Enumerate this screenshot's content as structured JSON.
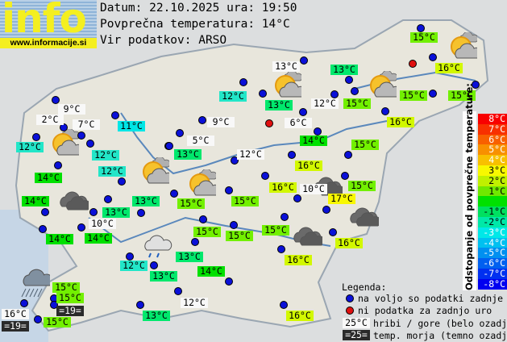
{
  "logo": {
    "word": "info",
    "url": "www.informacije.si"
  },
  "header": {
    "date_line": "Datum: 22.10.2025 ura: 19:50",
    "avg_line": "Povprečna temperatura: 14°C",
    "source_line": "Vir podatkov: ARSO"
  },
  "colors": {
    "white": "#f8f8f8",
    "11": "#00e6e6",
    "12": "#22e6c8",
    "13": "#00e86c",
    "14": "#00e000",
    "15": "#72f000",
    "16": "#d2f800",
    "17": "#f8f800",
    "sea": "#2a2a2a",
    "station_dot": "#0a10d8",
    "missing_dot": "#e01010"
  },
  "stations": [
    {
      "t": "9°C",
      "k": "white"
    },
    {
      "t": "2°C",
      "k": "white"
    },
    {
      "t": "7°C",
      "k": "white"
    },
    {
      "t": "11°C",
      "k": "11"
    },
    {
      "t": "12°C",
      "k": "12"
    },
    {
      "t": "12°C",
      "k": "12"
    },
    {
      "t": "12°C",
      "k": "12"
    },
    {
      "t": "14°C",
      "k": "14"
    },
    {
      "t": "14°C",
      "k": "14"
    },
    {
      "t": "14°C",
      "k": "14"
    },
    {
      "t": "13°C",
      "k": "13"
    },
    {
      "t": "10°C",
      "k": "white"
    },
    {
      "t": "14°C",
      "k": "14"
    },
    {
      "t": "13°C",
      "k": "13"
    },
    {
      "t": "12°C",
      "k": "12"
    },
    {
      "t": "13°C",
      "k": "13"
    },
    {
      "t": "13°C",
      "k": "13"
    },
    {
      "t": "14°C",
      "k": "14"
    },
    {
      "t": "12°C",
      "k": "white"
    },
    {
      "t": "13°C",
      "k": "13"
    },
    {
      "t": "15°C",
      "k": "15"
    },
    {
      "t": "15°C",
      "k": "15"
    },
    {
      "t": "=19=",
      "k": "sea"
    },
    {
      "t": "16°C",
      "k": "white"
    },
    {
      "t": "=19=",
      "k": "sea"
    },
    {
      "t": "15°C",
      "k": "15"
    },
    {
      "t": "12°C",
      "k": "12"
    },
    {
      "t": "13°C",
      "k": "white"
    },
    {
      "t": "13°C",
      "k": "13"
    },
    {
      "t": "12°C",
      "k": "white"
    },
    {
      "t": "9°C",
      "k": "white"
    },
    {
      "t": "6°C",
      "k": "white"
    },
    {
      "t": "5°C",
      "k": "white"
    },
    {
      "t": "13°C",
      "k": "13"
    },
    {
      "t": "14°C",
      "k": "14"
    },
    {
      "t": "12°C",
      "k": "white"
    },
    {
      "t": "16°C",
      "k": "16"
    },
    {
      "t": "13°C",
      "k": "13"
    },
    {
      "t": "15°C",
      "k": "15"
    },
    {
      "t": "15°C",
      "k": "15"
    },
    {
      "t": "16°C",
      "k": "16"
    },
    {
      "t": "15°C",
      "k": "15"
    },
    {
      "t": "15°C",
      "k": "15"
    },
    {
      "t": "16°C",
      "k": "16"
    },
    {
      "t": "15°C",
      "k": "15"
    },
    {
      "t": "16°C",
      "k": "16"
    },
    {
      "t": "10°C",
      "k": "white"
    },
    {
      "t": "17°C",
      "k": "17"
    },
    {
      "t": "15°C",
      "k": "15"
    },
    {
      "t": "15°C",
      "k": "15"
    },
    {
      "t": "15°C",
      "k": "15"
    },
    {
      "t": "15°C",
      "k": "15"
    },
    {
      "t": "15°C",
      "k": "15"
    },
    {
      "t": "15°C",
      "k": "15"
    },
    {
      "t": "16°C",
      "k": "16"
    },
    {
      "t": "16°C",
      "k": "16"
    },
    {
      "t": "16°C",
      "k": "16"
    }
  ],
  "weather_icons": [
    "partly-cloudy",
    "partly-cloudy",
    "partly-cloudy",
    "partly-cloudy",
    "partly-cloudy",
    "partly-cloudy",
    "overcast",
    "overcast",
    "overcast",
    "overcast",
    "light-rain",
    "heavy-rain"
  ],
  "scale": {
    "title": "Odstopanje od povprečne temperature:",
    "steps": [
      {
        "t": "8°C",
        "c": "#f80000"
      },
      {
        "t": "7°C",
        "c": "#f83000"
      },
      {
        "t": "6°C",
        "c": "#f86000"
      },
      {
        "t": "5°C",
        "c": "#f89000"
      },
      {
        "t": "4°C",
        "c": "#f8c000"
      },
      {
        "t": "3°C",
        "c": "#f8f800"
      },
      {
        "t": "2°C",
        "c": "#c0f000"
      },
      {
        "t": "1°C",
        "c": "#70e800"
      },
      {
        "t": "",
        "c": "#00e000"
      },
      {
        "t": "-1°C",
        "c": "#00e060"
      },
      {
        "t": "-2°C",
        "c": "#00e8a8"
      },
      {
        "t": "-3°C",
        "c": "#00e8e8"
      },
      {
        "t": "-4°C",
        "c": "#00c0f0"
      },
      {
        "t": "-5°C",
        "c": "#0090f0"
      },
      {
        "t": "-6°C",
        "c": "#0060f0"
      },
      {
        "t": "-7°C",
        "c": "#0030f0"
      },
      {
        "t": "-8°C",
        "c": "#0000f0"
      }
    ]
  },
  "legend": {
    "title": "Legenda:",
    "blue_dot": "na voljo so podatki zadnje ure",
    "red_dot": "ni podatka za zadnjo uro",
    "mountain_sample": "25°C",
    "mountain_text": "hribi / gore (belo ozadje)",
    "sea_sample": "=25=",
    "sea_text": "temp. morja (temno ozadje)"
  }
}
